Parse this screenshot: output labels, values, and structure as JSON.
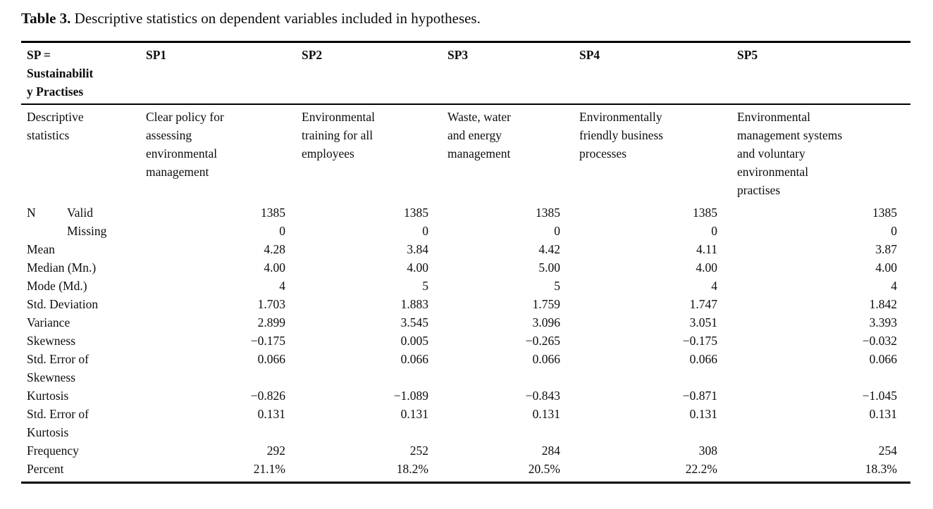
{
  "title": {
    "label": "Table 3.",
    "text": " Descriptive statistics on dependent variables included in hypotheses."
  },
  "table": {
    "header_row1": [
      "SP =\nSustainabilit\ny Practises",
      "SP1",
      "SP2",
      "SP3",
      "SP4",
      "SP5"
    ],
    "header_row2": [
      "Descriptive\nstatistics",
      "Clear policy for\nassessing\nenvironmental\nmanagement",
      "Environmental\ntraining for all\nemployees",
      "Waste, water\nand energy\nmanagement",
      "Environmentally\nfriendly business\nprocesses",
      "Environmental\nmanagement systems\nand voluntary\nenvironmental\npractises"
    ],
    "rows": [
      {
        "label": "N",
        "sublabel": "Valid",
        "values": [
          "1385",
          "1385",
          "1385",
          "1385",
          "1385"
        ]
      },
      {
        "label": "",
        "sublabel": "Missing",
        "values": [
          "0",
          "0",
          "0",
          "0",
          "0"
        ]
      },
      {
        "label": "Mean",
        "values": [
          "4.28",
          "3.84",
          "4.42",
          "4.11",
          "3.87"
        ]
      },
      {
        "label": "Median (Mn.)",
        "values": [
          "4.00",
          "4.00",
          "5.00",
          "4.00",
          "4.00"
        ]
      },
      {
        "label": "Mode (Md.)",
        "values": [
          "4",
          "5",
          "5",
          "4",
          "4"
        ]
      },
      {
        "label": "Std. Deviation",
        "values": [
          "1.703",
          "1.883",
          "1.759",
          "1.747",
          "1.842"
        ]
      },
      {
        "label": "Variance",
        "values": [
          "2.899",
          "3.545",
          "3.096",
          "3.051",
          "3.393"
        ]
      },
      {
        "label": "Skewness",
        "values": [
          "−0.175",
          "0.005",
          "−0.265",
          "−0.175",
          "−0.032"
        ]
      },
      {
        "label": "Std. Error of\nSkewness",
        "values": [
          "0.066",
          "0.066",
          "0.066",
          "0.066",
          "0.066"
        ]
      },
      {
        "label": "Kurtosis",
        "values": [
          "−0.826",
          "−1.089",
          "−0.843",
          "−0.871",
          "−1.045"
        ]
      },
      {
        "label": "Std. Error of\nKurtosis",
        "values": [
          "0.131",
          "0.131",
          "0.131",
          "0.131",
          "0.131"
        ]
      },
      {
        "label": "Frequency",
        "values": [
          "292",
          "252",
          "284",
          "308",
          "254"
        ]
      },
      {
        "label": "Percent",
        "values": [
          "21.1%",
          "18.2%",
          "20.5%",
          "22.2%",
          "18.3%"
        ]
      }
    ]
  }
}
